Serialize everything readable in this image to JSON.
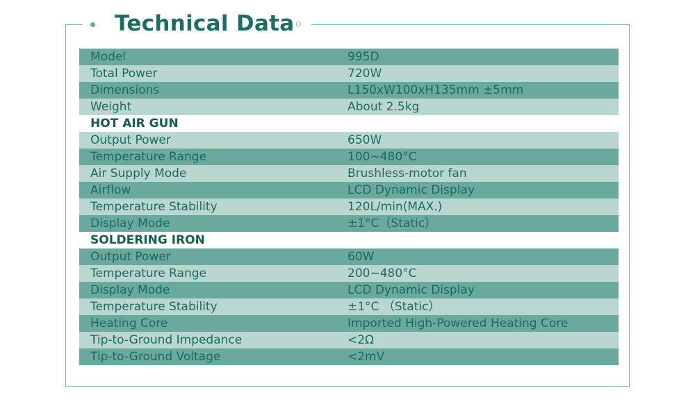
{
  "title": "Technical Data",
  "colors": {
    "accent": "#1b6e61",
    "row_dark": "#6ba89e",
    "row_light": "#b9d7d0",
    "border": "#8fb3ac"
  },
  "icons": [
    "filled-dot-icon",
    "hollow-dot-icon"
  ],
  "rows": [
    {
      "label": "Model",
      "value": "995D",
      "style": "dark"
    },
    {
      "label": "Total Power",
      "value": "720W",
      "style": "light"
    },
    {
      "label": "Dimensions",
      "value": "L150xW100xH135mm ±5mm",
      "style": "dark"
    },
    {
      "label": "Weight",
      "value": "About 2.5kg",
      "style": "light"
    },
    {
      "label": "HOT AIR GUN",
      "value": "",
      "style": "section"
    },
    {
      "label": "Output Power",
      "value": "650W",
      "style": "light"
    },
    {
      "label": "Temperature Range",
      "value": "100~480°C",
      "style": "dark"
    },
    {
      "label": "Air Supply Mode",
      "value": "Brushless-motor fan",
      "style": "light"
    },
    {
      "label": "Airflow",
      "value": "LCD Dynamic Display",
      "style": "dark"
    },
    {
      "label": "Temperature Stability",
      "value": "120L/min(MAX.)",
      "style": "light"
    },
    {
      "label": "Display Mode",
      "value": "±1°C（Static）",
      "style": "dark"
    },
    {
      "label": "SOLDERING IRON",
      "value": "",
      "style": "section"
    },
    {
      "label": "Output Power",
      "value": "60W",
      "style": "dark"
    },
    {
      "label": "Temperature Range",
      "value": "200~480°C",
      "style": "light"
    },
    {
      "label": "Display Mode",
      "value": "LCD Dynamic Display",
      "style": "dark"
    },
    {
      "label": "Temperature Stability",
      "value": "±1°C （Static）",
      "style": "light"
    },
    {
      "label": "Heating Core",
      "value": "Imported High-Powered Heating Core",
      "style": "dark"
    },
    {
      "label": "Tip-to-Ground Impedance",
      "value": "<2Ω",
      "style": "light"
    },
    {
      "label": "Tip-to-Ground Voltage",
      "value": "<2mV",
      "style": "dark"
    }
  ]
}
